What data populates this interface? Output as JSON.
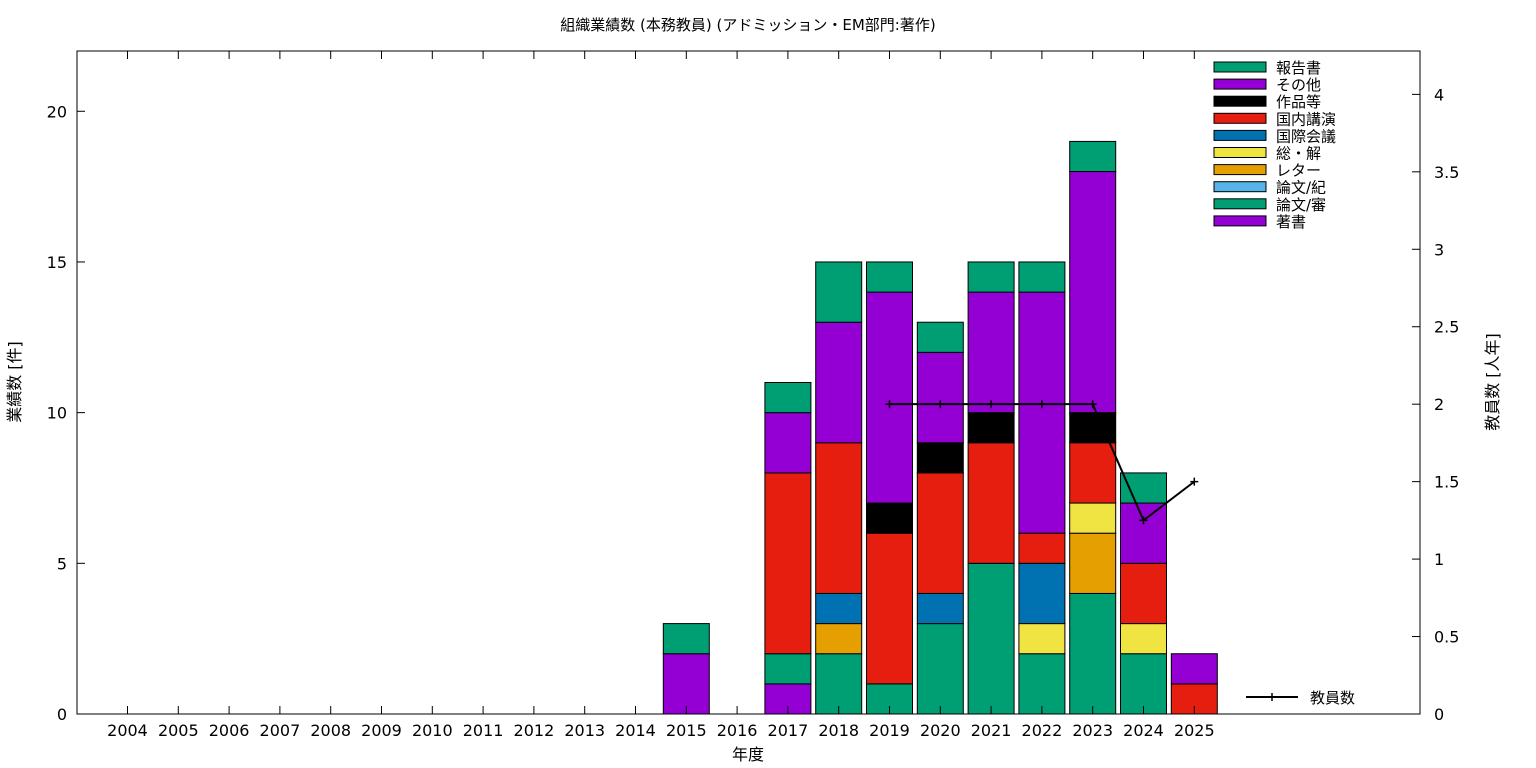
{
  "chart_data": {
    "type": "bar",
    "stacked": true,
    "title": "組織業績数 (本務教員) (アドミッション・EM部門:著作)",
    "xlabel": "年度",
    "ylabel": "業績数 [件]",
    "y2label": "教員数 [人年]",
    "categories": [
      "2004",
      "2005",
      "2006",
      "2007",
      "2008",
      "2009",
      "2010",
      "2011",
      "2012",
      "2013",
      "2014",
      "2015",
      "2016",
      "2017",
      "2018",
      "2019",
      "2020",
      "2021",
      "2022",
      "2023",
      "2024",
      "2025"
    ],
    "ylim": [
      0,
      22
    ],
    "yticks": [
      0,
      5,
      10,
      15,
      20
    ],
    "y2lim": [
      0,
      4.28
    ],
    "y2ticks": [
      "0",
      "0.5",
      "1",
      "1.5",
      "2",
      "2.5",
      "3",
      "3.5",
      "4"
    ],
    "grid": false,
    "legend_position": "top-right",
    "series": [
      {
        "name": "著書",
        "color": "#9400d3",
        "values": [
          0,
          0,
          0,
          0,
          0,
          0,
          0,
          0,
          0,
          0,
          0,
          2,
          0,
          1,
          0,
          0,
          0,
          0,
          0,
          0,
          0,
          0
        ]
      },
      {
        "name": "論文/審",
        "color": "#009e73",
        "values": [
          0,
          0,
          0,
          0,
          0,
          0,
          0,
          0,
          0,
          0,
          0,
          0,
          0,
          1,
          2,
          1,
          3,
          5,
          2,
          4,
          2,
          0
        ]
      },
      {
        "name": "論文/紀",
        "color": "#56b4e9",
        "values": [
          0,
          0,
          0,
          0,
          0,
          0,
          0,
          0,
          0,
          0,
          0,
          0,
          0,
          0,
          0,
          0,
          0,
          0,
          0,
          0,
          0,
          0
        ]
      },
      {
        "name": "レター",
        "color": "#e69f00",
        "values": [
          0,
          0,
          0,
          0,
          0,
          0,
          0,
          0,
          0,
          0,
          0,
          0,
          0,
          0,
          1,
          0,
          0,
          0,
          0,
          2,
          0,
          0
        ]
      },
      {
        "name": "総・解",
        "color": "#f0e442",
        "values": [
          0,
          0,
          0,
          0,
          0,
          0,
          0,
          0,
          0,
          0,
          0,
          0,
          0,
          0,
          0,
          0,
          0,
          0,
          1,
          1,
          1,
          0
        ]
      },
      {
        "name": "国際会議",
        "color": "#0072b2",
        "values": [
          0,
          0,
          0,
          0,
          0,
          0,
          0,
          0,
          0,
          0,
          0,
          0,
          0,
          0,
          1,
          0,
          1,
          0,
          2,
          0,
          0,
          0
        ]
      },
      {
        "name": "国内講演",
        "color": "#e51e10",
        "values": [
          0,
          0,
          0,
          0,
          0,
          0,
          0,
          0,
          0,
          0,
          0,
          0,
          0,
          6,
          5,
          5,
          4,
          4,
          1,
          2,
          2,
          1
        ]
      },
      {
        "name": "作品等",
        "color": "#000000",
        "values": [
          0,
          0,
          0,
          0,
          0,
          0,
          0,
          0,
          0,
          0,
          0,
          0,
          0,
          0,
          0,
          1,
          1,
          1,
          0,
          1,
          0,
          0
        ]
      },
      {
        "name": "その他",
        "color": "#9400d3",
        "values": [
          0,
          0,
          0,
          0,
          0,
          0,
          0,
          0,
          0,
          0,
          0,
          0,
          0,
          2,
          4,
          7,
          3,
          4,
          8,
          8,
          2,
          1
        ]
      },
      {
        "name": "報告書",
        "color": "#009e73",
        "values": [
          0,
          0,
          0,
          0,
          0,
          0,
          0,
          0,
          0,
          0,
          0,
          1,
          0,
          1,
          2,
          1,
          1,
          1,
          1,
          1,
          1,
          0
        ]
      }
    ],
    "faculty_series": {
      "name": "教員数",
      "color": "#000000",
      "years": [
        "2019",
        "2020",
        "2021",
        "2022",
        "2023",
        "2024",
        "2025"
      ],
      "values": [
        2,
        2,
        2,
        2,
        2,
        1.25,
        1.5
      ]
    }
  }
}
